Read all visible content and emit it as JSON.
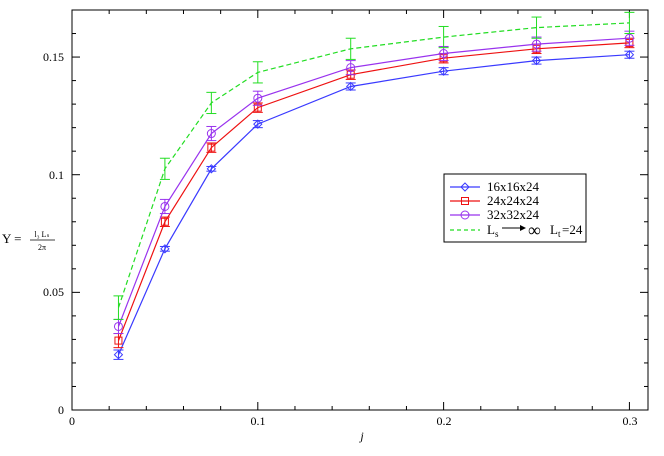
{
  "chart_data": {
    "type": "line",
    "xlabel": "j",
    "ylabel": {
      "prefix": "Υ =",
      "numerator": "l₃ Lₛ",
      "denominator": "2π"
    },
    "xlim": [
      0,
      0.31
    ],
    "ylim": [
      0,
      0.17
    ],
    "xticks": [
      "0",
      "0.1",
      "0.2",
      "0.3"
    ],
    "yticks": [
      "0",
      "0.05",
      "0.1",
      "0.15"
    ],
    "x": [
      0.025,
      0.05,
      0.075,
      0.1,
      0.15,
      0.2,
      0.25,
      0.3
    ],
    "legend_position": "right",
    "series": [
      {
        "name": "16x16x24",
        "marker": "diamond",
        "line": "solid",
        "color": "#3a3aff",
        "values": [
          0.0235,
          0.0685,
          0.1025,
          0.1215,
          0.1375,
          0.144,
          0.1485,
          0.151
        ],
        "errors": [
          0.002,
          0.001,
          0.001,
          0.0015,
          0.0015,
          0.0015,
          0.0015,
          0.0015
        ]
      },
      {
        "name": "24x24x24",
        "marker": "square",
        "line": "solid",
        "color": "#ee1111",
        "values": [
          0.0295,
          0.08,
          0.1115,
          0.1285,
          0.1425,
          0.1495,
          0.1535,
          0.156
        ],
        "errors": [
          0.003,
          0.002,
          0.002,
          0.002,
          0.002,
          0.002,
          0.002,
          0.002
        ]
      },
      {
        "name": "32x32x24",
        "marker": "circle",
        "line": "solid",
        "color": "#9933ee",
        "values": [
          0.0355,
          0.0865,
          0.1175,
          0.1325,
          0.1455,
          0.1515,
          0.1555,
          0.158
        ],
        "errors": [
          0.003,
          0.003,
          0.003,
          0.003,
          0.003,
          0.003,
          0.003,
          0.003
        ]
      },
      {
        "name": "L_s → ∞ L_t=24",
        "marker": "none",
        "line": "dashed",
        "color": "#22dd22",
        "values": [
          0.0435,
          0.1025,
          0.1305,
          0.1435,
          0.1535,
          0.1585,
          0.1625,
          0.1645
        ],
        "errors": [
          0.005,
          0.0045,
          0.0045,
          0.0045,
          0.0045,
          0.0045,
          0.0045,
          0.0045
        ]
      }
    ],
    "legend_text": {
      "s1": "16x16x24",
      "s2": "24x24x24",
      "s3": "32x32x24",
      "s4_main": "L",
      "s4_sub": "s",
      "s4_inf": "∞",
      "s4_lt": "L",
      "s4_lt_sub": "t",
      "s4_tail": "=24"
    }
  }
}
